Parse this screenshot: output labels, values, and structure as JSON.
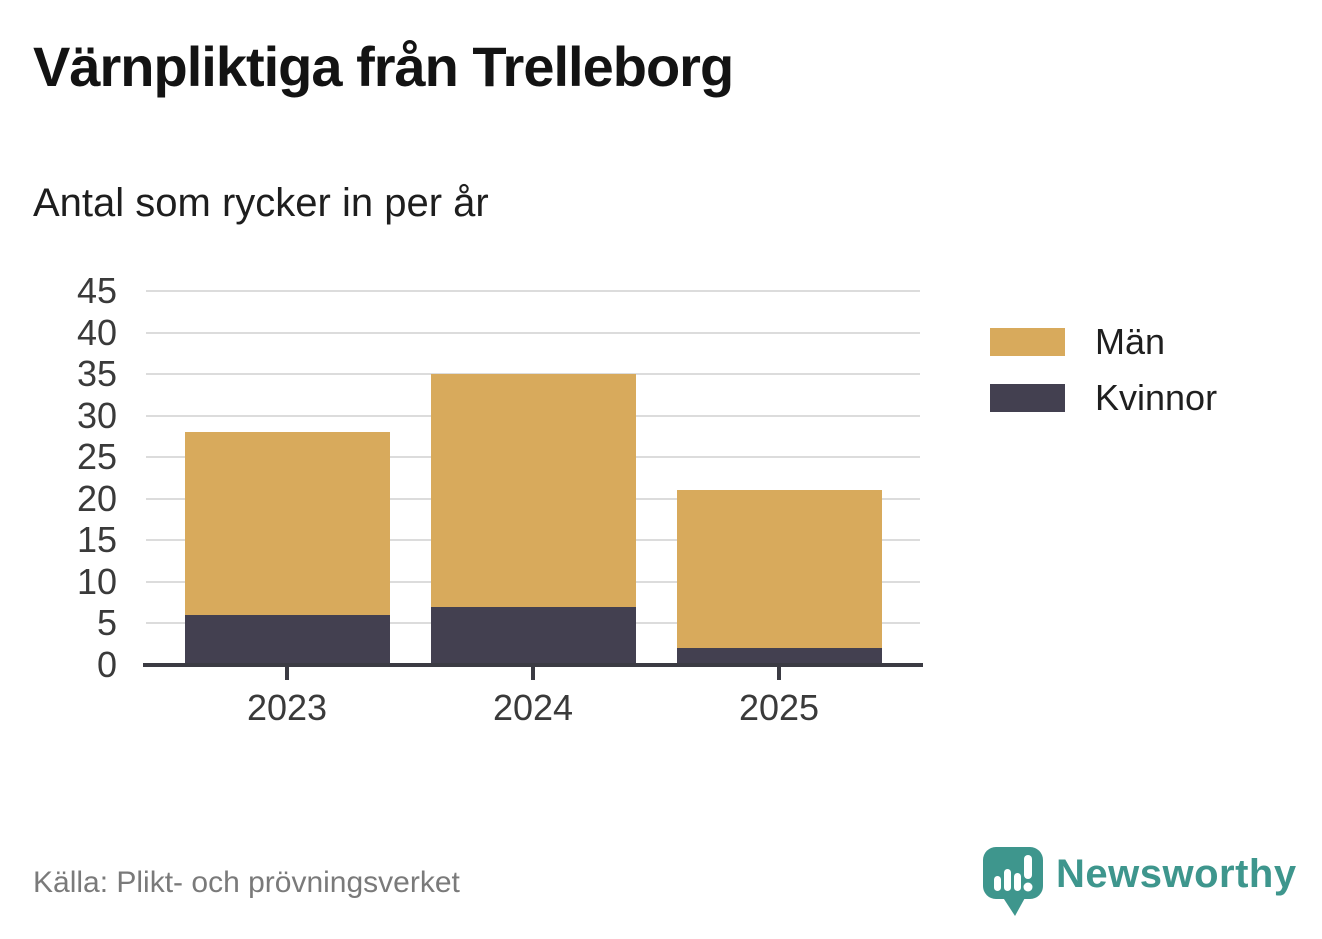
{
  "chart_data": {
    "type": "bar",
    "stacked": true,
    "title": "Värnpliktiga från Trelleborg",
    "subtitle": "Antal som rycker in per år",
    "categories": [
      "2023",
      "2024",
      "2025"
    ],
    "series": [
      {
        "name": "Män",
        "color": "#D8AA5C",
        "values": [
          22,
          28,
          19
        ]
      },
      {
        "name": "Kvinnor",
        "color": "#434050",
        "values": [
          6,
          7,
          2
        ]
      }
    ],
    "stack_totals": [
      28,
      35,
      21
    ],
    "xlabel": "",
    "ylabel": "",
    "ylim": [
      0,
      45
    ],
    "yticks": [
      0,
      5,
      10,
      15,
      20,
      25,
      30,
      35,
      40,
      45
    ],
    "grid": true,
    "legend_position": "right"
  },
  "legend": {
    "items": [
      {
        "label": "Män",
        "color": "#D8AA5C"
      },
      {
        "label": "Kvinnor",
        "color": "#434050"
      }
    ]
  },
  "footer": {
    "source": "Källa: Plikt- och prövningsverket",
    "brand": "Newsworthy",
    "brand_color": "#3E968D",
    "logo_icon": "speech-bubble-bar-chart-icon"
  },
  "colors": {
    "background": "#FFFFFF",
    "axis": "#3B3B43",
    "gridline": "#DCDCDC",
    "tick_label": "#3A3A3A",
    "title_text": "#131313",
    "source_text": "#7A7A7A"
  }
}
